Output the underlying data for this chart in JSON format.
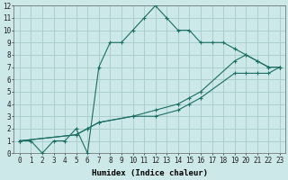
{
  "xlabel": "Humidex (Indice chaleur)",
  "bg_color": "#cce8e8",
  "grid_color": "#aacece",
  "line_color": "#1a6e64",
  "line1_x": [
    0,
    1,
    2,
    3,
    4,
    5,
    6,
    7,
    8,
    9,
    10,
    11,
    12,
    13,
    14,
    15,
    16,
    17,
    18,
    19,
    20,
    21,
    22,
    23
  ],
  "line1_y": [
    1,
    1,
    0,
    1,
    1,
    2,
    0,
    7,
    9,
    9,
    10,
    11,
    12,
    11,
    10,
    10,
    9,
    9,
    9,
    8.5,
    8,
    7.5,
    7,
    7
  ],
  "line2_x": [
    0,
    5,
    6,
    7,
    10,
    12,
    14,
    15,
    16,
    19,
    20,
    21,
    22,
    23
  ],
  "line2_y": [
    1,
    1.5,
    2,
    2.5,
    3,
    3.5,
    4,
    4.5,
    5,
    7.5,
    8,
    7.5,
    7,
    7
  ],
  "line3_x": [
    0,
    5,
    6,
    7,
    10,
    12,
    14,
    15,
    16,
    19,
    20,
    21,
    22,
    23
  ],
  "line3_y": [
    1,
    1.5,
    2,
    2.5,
    3,
    3,
    3.5,
    4,
    4.5,
    6.5,
    6.5,
    6.5,
    6.5,
    7
  ],
  "xlim": [
    -0.5,
    23.5
  ],
  "ylim": [
    0,
    12
  ],
  "xticks": [
    0,
    1,
    2,
    3,
    4,
    5,
    6,
    7,
    8,
    9,
    10,
    11,
    12,
    13,
    14,
    15,
    16,
    17,
    18,
    19,
    20,
    21,
    22,
    23
  ],
  "yticks": [
    0,
    1,
    2,
    3,
    4,
    5,
    6,
    7,
    8,
    9,
    10,
    11,
    12
  ],
  "tick_fontsize": 5.5,
  "xlabel_fontsize": 6.5
}
